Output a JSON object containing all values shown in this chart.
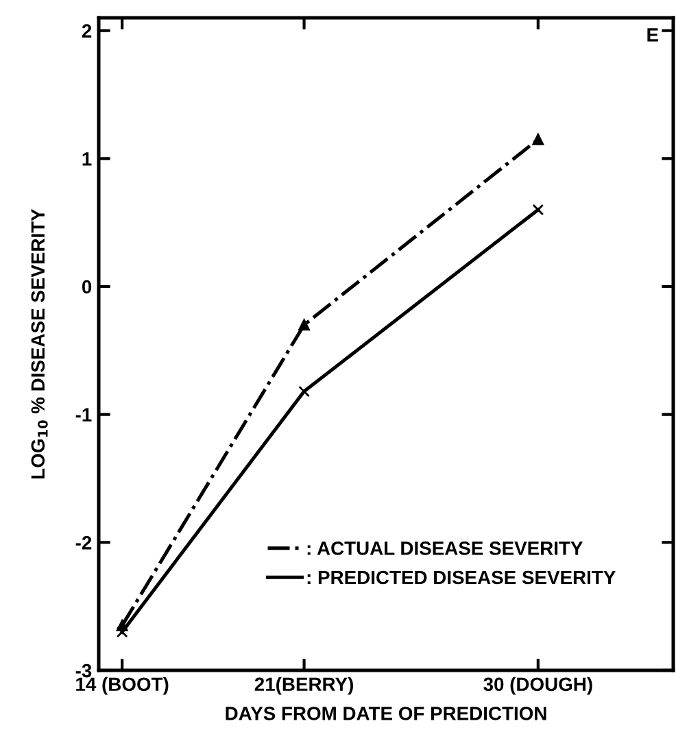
{
  "chart_data": {
    "type": "line",
    "xlabel": "DAYS FROM DATE OF PREDICTION",
    "ylabel": "LOG$_{10}$ % DISEASE SEVERITY",
    "x": [
      14,
      21,
      30
    ],
    "series": [
      {
        "name": ": ACTUAL DISEASE SEVERITY",
        "color": "#000000",
        "values": [
          -2.65,
          -0.3,
          1.15
        ],
        "line_style": "dashdot",
        "marker": "triangle"
      },
      {
        "name": ": PREDICTED DISEASE SEVERITY",
        "color": "#000000",
        "values": [
          -2.7,
          -0.82,
          0.6
        ],
        "line_style": "solid",
        "marker": "cross"
      }
    ],
    "xlim": [
      13.1,
      35.2
    ],
    "ylim": [
      -3,
      2.1
    ],
    "xticks": [
      {
        "value": 14,
        "label": "14 (BOOT)"
      },
      {
        "value": 21,
        "label": "21(BERRY)"
      },
      {
        "value": 30,
        "label": "30 (DOUGH)"
      }
    ],
    "yticks": [
      -3,
      -2,
      -1,
      0,
      1,
      2
    ],
    "grid": false,
    "legend": "bottom right",
    "annotations": [
      "E"
    ]
  }
}
